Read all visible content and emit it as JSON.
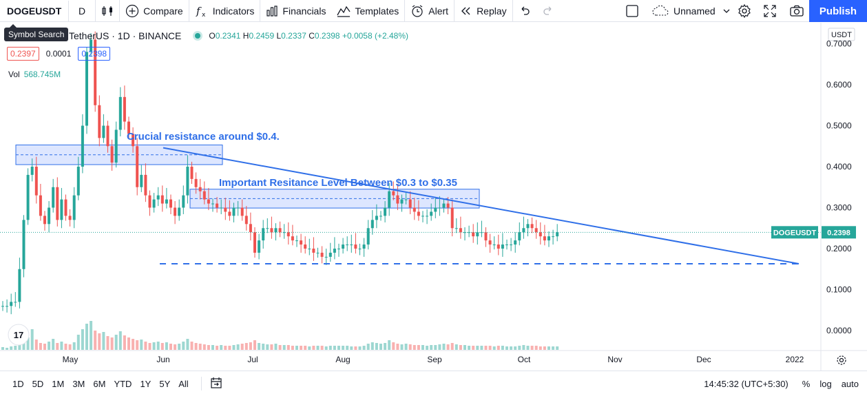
{
  "toolbar": {
    "symbol": "DOGEUSDT",
    "interval": "D",
    "compare": "Compare",
    "indicators": "Indicators",
    "financials": "Financials",
    "templates": "Templates",
    "alert": "Alert",
    "replay": "Replay",
    "layout_name": "Unnamed",
    "publish": "Publish"
  },
  "tooltip": "Symbol Search",
  "legend": {
    "title": "TetherUS · 1D · BINANCE",
    "o_key": "O",
    "o_val": "0.2341",
    "h_key": "H",
    "h_val": "0.2459",
    "l_key": "L",
    "l_val": "0.2337",
    "c_key": "C",
    "c_val": "0.2398",
    "change": "+0.0058 (+2.48%)",
    "bid": "0.2397",
    "spread": "0.0001",
    "ask": "0.2398",
    "vol_label": "Vol",
    "vol_value": "568.745M"
  },
  "price_scale": {
    "currency": "USDT",
    "ticks": [
      "0.7000",
      "0.6000",
      "0.5000",
      "0.4000",
      "0.3000",
      "0.2000",
      "0.1000",
      "0.0000"
    ],
    "last_label_symbol": "DOGEUSDT",
    "last_label_value": "0.2398"
  },
  "time_axis": [
    "May",
    "Jun",
    "Jul",
    "Aug",
    "Sep",
    "Oct",
    "Nov",
    "Dec",
    "2022"
  ],
  "annotations": {
    "resistance_04": "Crucial resistance around $0.4.",
    "resistance_03": "Important Resitance Level Between $0.3 to $0.35"
  },
  "bottom": {
    "ranges": [
      "1D",
      "5D",
      "1M",
      "3M",
      "6M",
      "YTD",
      "1Y",
      "5Y",
      "All"
    ],
    "clock": "14:45:32 (UTC+5:30)",
    "percent": "%",
    "log": "log",
    "auto": "auto"
  },
  "colors": {
    "up": "#26a69a",
    "down": "#ef5350",
    "accent": "#2962ff",
    "drawing": "#2f6fe8"
  },
  "chart_data": {
    "type": "candlestick",
    "symbol": "DOGEUSDT",
    "exchange": "BINANCE",
    "interval": "1D",
    "ylim": [
      -0.04,
      0.73
    ],
    "last_price": 0.2398,
    "resistance_zone_04": [
      0.405,
      0.453
    ],
    "resistance_zone_03": [
      0.299,
      0.345
    ],
    "support_level": 0.163,
    "trendline": [
      [
        0.446,
        "2021-06-01"
      ],
      [
        0.163,
        "2021-12-31"
      ]
    ],
    "close_series_approx": [
      0.06,
      0.06,
      0.07,
      0.07,
      0.15,
      0.27,
      0.38,
      0.4,
      0.33,
      0.28,
      0.26,
      0.3,
      0.35,
      0.27,
      0.32,
      0.28,
      0.27,
      0.33,
      0.4,
      0.5,
      0.68,
      0.71,
      0.55,
      0.47,
      0.5,
      0.45,
      0.41,
      0.49,
      0.57,
      0.51,
      0.48,
      0.45,
      0.35,
      0.38,
      0.33,
      0.3,
      0.32,
      0.33,
      0.31,
      0.32,
      0.3,
      0.28,
      0.3,
      0.33,
      0.4,
      0.37,
      0.35,
      0.34,
      0.32,
      0.31,
      0.31,
      0.3,
      0.3,
      0.29,
      0.28,
      0.3,
      0.3,
      0.28,
      0.26,
      0.24,
      0.19,
      0.22,
      0.25,
      0.25,
      0.24,
      0.25,
      0.24,
      0.24,
      0.23,
      0.22,
      0.22,
      0.21,
      0.2,
      0.2,
      0.19,
      0.19,
      0.18,
      0.18,
      0.19,
      0.2,
      0.2,
      0.21,
      0.21,
      0.21,
      0.2,
      0.2,
      0.21,
      0.25,
      0.27,
      0.28,
      0.28,
      0.3,
      0.34,
      0.33,
      0.31,
      0.32,
      0.32,
      0.3,
      0.29,
      0.28,
      0.28,
      0.28,
      0.29,
      0.3,
      0.3,
      0.31,
      0.3,
      0.25,
      0.25,
      0.24,
      0.24,
      0.24,
      0.23,
      0.24,
      0.24,
      0.22,
      0.21,
      0.21,
      0.2,
      0.21,
      0.21,
      0.21,
      0.22,
      0.24,
      0.25,
      0.26,
      0.25,
      0.24,
      0.23,
      0.22,
      0.23,
      0.23,
      0.24
    ]
  }
}
